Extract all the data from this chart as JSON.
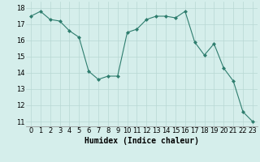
{
  "x": [
    0,
    1,
    2,
    3,
    4,
    5,
    6,
    7,
    8,
    9,
    10,
    11,
    12,
    13,
    14,
    15,
    16,
    17,
    18,
    19,
    20,
    21,
    22,
    23
  ],
  "y": [
    17.5,
    17.8,
    17.3,
    17.2,
    16.6,
    16.2,
    14.1,
    13.6,
    13.8,
    13.8,
    16.5,
    16.7,
    17.3,
    17.5,
    17.5,
    17.4,
    17.8,
    15.9,
    15.1,
    15.8,
    14.3,
    13.5,
    11.6,
    11.0
  ],
  "line_color": "#2e7d6e",
  "marker": "D",
  "marker_size": 2,
  "bg_color": "#d5eeeb",
  "grid_color": "#b8d8d4",
  "xlabel": "Humidex (Indice chaleur)",
  "xlabel_fontsize": 7,
  "tick_fontsize": 6,
  "ylim": [
    10.7,
    18.4
  ],
  "xlim": [
    -0.5,
    23.5
  ],
  "yticks": [
    11,
    12,
    13,
    14,
    15,
    16,
    17,
    18
  ],
  "xticks": [
    0,
    1,
    2,
    3,
    4,
    5,
    6,
    7,
    8,
    9,
    10,
    11,
    12,
    13,
    14,
    15,
    16,
    17,
    18,
    19,
    20,
    21,
    22,
    23
  ]
}
